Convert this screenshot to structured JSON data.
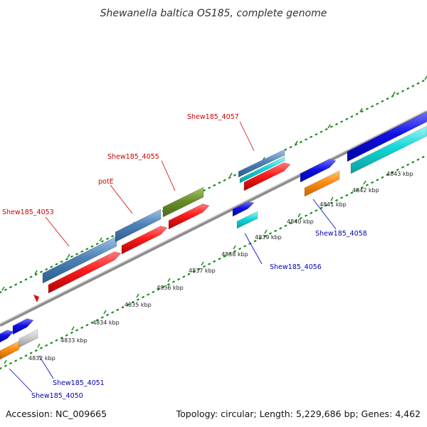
{
  "title": "Shewanella baltica OS185, complete genome",
  "accession": "Accession: NC_009665",
  "summary": "Topology: circular; Length: 5,229,686 bp; Genes: 4,462",
  "colors": {
    "backbone": "#7f7f7f",
    "tick_dots": "#1a8a1a",
    "label_red": "#cc0000",
    "label_blue": "#0000b0",
    "gene_red": "#ff1a1a",
    "gene_steelblue": "#4f83b8",
    "gene_olive": "#6b8f2a",
    "gene_blue": "#1010e6",
    "gene_cyan": "#12d6d6",
    "gene_orange": "#ff8c10",
    "gene_gray": "#c8c8c8"
  },
  "ticks": [
    "4832 kbp",
    "4833 kbp",
    "4834 kbp",
    "4835 kbp",
    "4836 kbp",
    "4837 kbp",
    "4838 kbp",
    "4839 kbp",
    "4840 kbp",
    "4841 kbp",
    "4842 kbp",
    "4843 kbp"
  ],
  "labels": {
    "shew185_4053": "Shew185_4053",
    "pote": "potE",
    "shew185_4055": "Shew185_4055",
    "shew185_4057": "Shew185_4057",
    "shew185_4058": "Shew185_4058",
    "shew185_4056": "Shew185_4056",
    "shew185_4051": "Shew185_4051",
    "shew185_4050": "Shew185_4050"
  }
}
